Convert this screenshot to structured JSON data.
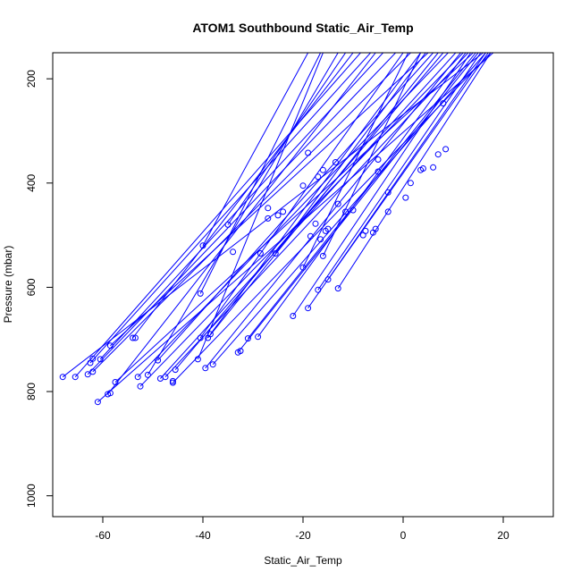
{
  "chart_data": {
    "type": "line",
    "title": "ATOM1 Southbound Static_Air_Temp",
    "xlabel": "Static_Air_Temp",
    "ylabel": "Pressure (mbar)",
    "xlim": [
      -70,
      30
    ],
    "ylim": [
      1040,
      150
    ],
    "y_reversed": true,
    "x_ticks": [
      -60,
      -40,
      -20,
      0,
      20
    ],
    "y_ticks": [
      200,
      400,
      600,
      800,
      1000
    ],
    "grid": false,
    "legend": "none",
    "series_color": "#0000ff",
    "marker": "open-circle",
    "series": [
      {
        "x": [
          -68.0,
          16.0
        ],
        "y": [
          772,
          150
        ]
      },
      {
        "x": [
          -65.5,
          -8.5
        ],
        "y": [
          772,
          150
        ]
      },
      {
        "x": [
          -63.0,
          -1.5
        ],
        "y": [
          767,
          150
        ]
      },
      {
        "x": [
          -62.5,
          -6.5
        ],
        "y": [
          745,
          150
        ]
      },
      {
        "x": [
          -62.0,
          1.5
        ],
        "y": [
          762,
          150
        ]
      },
      {
        "x": [
          -61.0,
          18.0
        ],
        "y": [
          820,
          150
        ]
      },
      {
        "x": [
          -60.5,
          -4.0
        ],
        "y": [
          738,
          150
        ]
      },
      {
        "x": [
          -59.0,
          -5.5
        ],
        "y": [
          805,
          150
        ]
      },
      {
        "x": [
          -58.5,
          5.0
        ],
        "y": [
          712,
          150
        ]
      },
      {
        "x": [
          -57.5,
          14.0
        ],
        "y": [
          782,
          150
        ]
      },
      {
        "x": [
          -54.0,
          -10.0
        ],
        "y": [
          697,
          150
        ]
      },
      {
        "x": [
          -53.0,
          9.0
        ],
        "y": [
          772,
          150
        ]
      },
      {
        "x": [
          -52.5,
          12.0
        ],
        "y": [
          790,
          150
        ]
      },
      {
        "x": [
          -51.0,
          -13.0
        ],
        "y": [
          768,
          150
        ]
      },
      {
        "x": [
          -49.0,
          6.0
        ],
        "y": [
          740,
          150
        ]
      },
      {
        "x": [
          -48.5,
          10.5
        ],
        "y": [
          775,
          150
        ]
      },
      {
        "x": [
          -47.5,
          13.0
        ],
        "y": [
          772,
          150
        ]
      },
      {
        "x": [
          -46.0,
          17.5
        ],
        "y": [
          783,
          150
        ]
      },
      {
        "x": [
          -45.5,
          8.0
        ],
        "y": [
          758,
          150
        ]
      },
      {
        "x": [
          -41.0,
          -16.0
        ],
        "y": [
          738,
          150
        ]
      },
      {
        "x": [
          -40.5,
          0.0
        ],
        "y": [
          697,
          150
        ]
      },
      {
        "x": [
          -40.5,
          -16.5
        ],
        "y": [
          612,
          150
        ]
      },
      {
        "x": [
          -40.0,
          -19.0
        ],
        "y": [
          520,
          150
        ]
      },
      {
        "x": [
          -39.5,
          11.5
        ],
        "y": [
          755,
          150
        ]
      },
      {
        "x": [
          -39.0,
          7.0
        ],
        "y": [
          697,
          150
        ]
      },
      {
        "x": [
          -38.5,
          3.5
        ],
        "y": [
          690,
          150
        ]
      },
      {
        "x": [
          -38.0,
          16.5
        ],
        "y": [
          748,
          150
        ]
      },
      {
        "x": [
          -35.0,
          -11.5
        ],
        "y": [
          480,
          150
        ]
      },
      {
        "x": [
          -33.0,
          15.0
        ],
        "y": [
          725,
          150
        ]
      },
      {
        "x": [
          -31.0,
          14.5
        ],
        "y": [
          698,
          150
        ]
      },
      {
        "x": [
          -29.0,
          12.5
        ],
        "y": [
          695,
          150
        ]
      },
      {
        "x": [
          -25.5,
          4.5
        ],
        "y": [
          535,
          150
        ]
      },
      {
        "x": [
          -22.0,
          13.5
        ],
        "y": [
          655,
          150
        ]
      },
      {
        "x": [
          -20.0,
          1.0
        ],
        "y": [
          562,
          150
        ]
      },
      {
        "x": [
          -19.0,
          16.5
        ],
        "y": [
          640,
          150
        ]
      },
      {
        "x": [
          -17.0,
          15.5
        ],
        "y": [
          605,
          150
        ]
      },
      {
        "x": [
          -16.0,
          3.5
        ],
        "y": [
          540,
          150
        ]
      },
      {
        "x": [
          -15.0,
          17.0
        ],
        "y": [
          585,
          150
        ]
      },
      {
        "x": [
          -13.0,
          17.5
        ],
        "y": [
          602,
          150
        ]
      }
    ],
    "markers": [
      {
        "x": -68.0,
        "y": 772
      },
      {
        "x": -65.5,
        "y": 772
      },
      {
        "x": -63.0,
        "y": 767
      },
      {
        "x": -62.5,
        "y": 745
      },
      {
        "x": -62.0,
        "y": 762
      },
      {
        "x": -62.0,
        "y": 737
      },
      {
        "x": -61.0,
        "y": 820
      },
      {
        "x": -60.5,
        "y": 738
      },
      {
        "x": -59.0,
        "y": 805
      },
      {
        "x": -58.5,
        "y": 803
      },
      {
        "x": -58.5,
        "y": 712
      },
      {
        "x": -57.5,
        "y": 782
      },
      {
        "x": -54.0,
        "y": 697
      },
      {
        "x": -53.5,
        "y": 697
      },
      {
        "x": -53.0,
        "y": 772
      },
      {
        "x": -52.5,
        "y": 790
      },
      {
        "x": -51.0,
        "y": 768
      },
      {
        "x": -49.0,
        "y": 740
      },
      {
        "x": -48.5,
        "y": 775
      },
      {
        "x": -47.5,
        "y": 772
      },
      {
        "x": -46.0,
        "y": 783
      },
      {
        "x": -46.0,
        "y": 780
      },
      {
        "x": -45.5,
        "y": 758
      },
      {
        "x": -41.0,
        "y": 738
      },
      {
        "x": -40.5,
        "y": 697
      },
      {
        "x": -40.5,
        "y": 612
      },
      {
        "x": -40.0,
        "y": 520
      },
      {
        "x": -39.5,
        "y": 755
      },
      {
        "x": -39.0,
        "y": 697
      },
      {
        "x": -38.5,
        "y": 690
      },
      {
        "x": -38.0,
        "y": 748
      },
      {
        "x": -35.0,
        "y": 480
      },
      {
        "x": -34.0,
        "y": 532
      },
      {
        "x": -33.0,
        "y": 725
      },
      {
        "x": -32.5,
        "y": 722
      },
      {
        "x": -31.0,
        "y": 698
      },
      {
        "x": -29.0,
        "y": 695
      },
      {
        "x": -28.5,
        "y": 535
      },
      {
        "x": -27.0,
        "y": 468
      },
      {
        "x": -27.0,
        "y": 448
      },
      {
        "x": -25.5,
        "y": 535
      },
      {
        "x": -25.0,
        "y": 462
      },
      {
        "x": -24.0,
        "y": 455
      },
      {
        "x": -22.0,
        "y": 655
      },
      {
        "x": -20.0,
        "y": 562
      },
      {
        "x": -20.0,
        "y": 405
      },
      {
        "x": -19.0,
        "y": 640
      },
      {
        "x": -19.0,
        "y": 342
      },
      {
        "x": -18.5,
        "y": 502
      },
      {
        "x": -17.5,
        "y": 478
      },
      {
        "x": -17.0,
        "y": 605
      },
      {
        "x": -17.0,
        "y": 388
      },
      {
        "x": -16.5,
        "y": 508
      },
      {
        "x": -16.0,
        "y": 540
      },
      {
        "x": -16.0,
        "y": 375
      },
      {
        "x": -15.5,
        "y": 492
      },
      {
        "x": -15.0,
        "y": 585
      },
      {
        "x": -15.0,
        "y": 488
      },
      {
        "x": -13.5,
        "y": 360
      },
      {
        "x": -13.0,
        "y": 602
      },
      {
        "x": -13.0,
        "y": 440
      },
      {
        "x": -11.5,
        "y": 455
      },
      {
        "x": -10.0,
        "y": 452
      },
      {
        "x": -8.0,
        "y": 500
      },
      {
        "x": -7.5,
        "y": 492
      },
      {
        "x": -6.0,
        "y": 495
      },
      {
        "x": -5.5,
        "y": 488
      },
      {
        "x": -5.0,
        "y": 378
      },
      {
        "x": -5.0,
        "y": 355
      },
      {
        "x": -3.0,
        "y": 418
      },
      {
        "x": -3.0,
        "y": 455
      },
      {
        "x": 0.5,
        "y": 428
      },
      {
        "x": 1.5,
        "y": 400
      },
      {
        "x": 3.5,
        "y": 375
      },
      {
        "x": 4.0,
        "y": 372
      },
      {
        "x": 6.0,
        "y": 370
      },
      {
        "x": 7.0,
        "y": 345
      },
      {
        "x": 8.0,
        "y": 247
      },
      {
        "x": 8.5,
        "y": 335
      }
    ]
  }
}
